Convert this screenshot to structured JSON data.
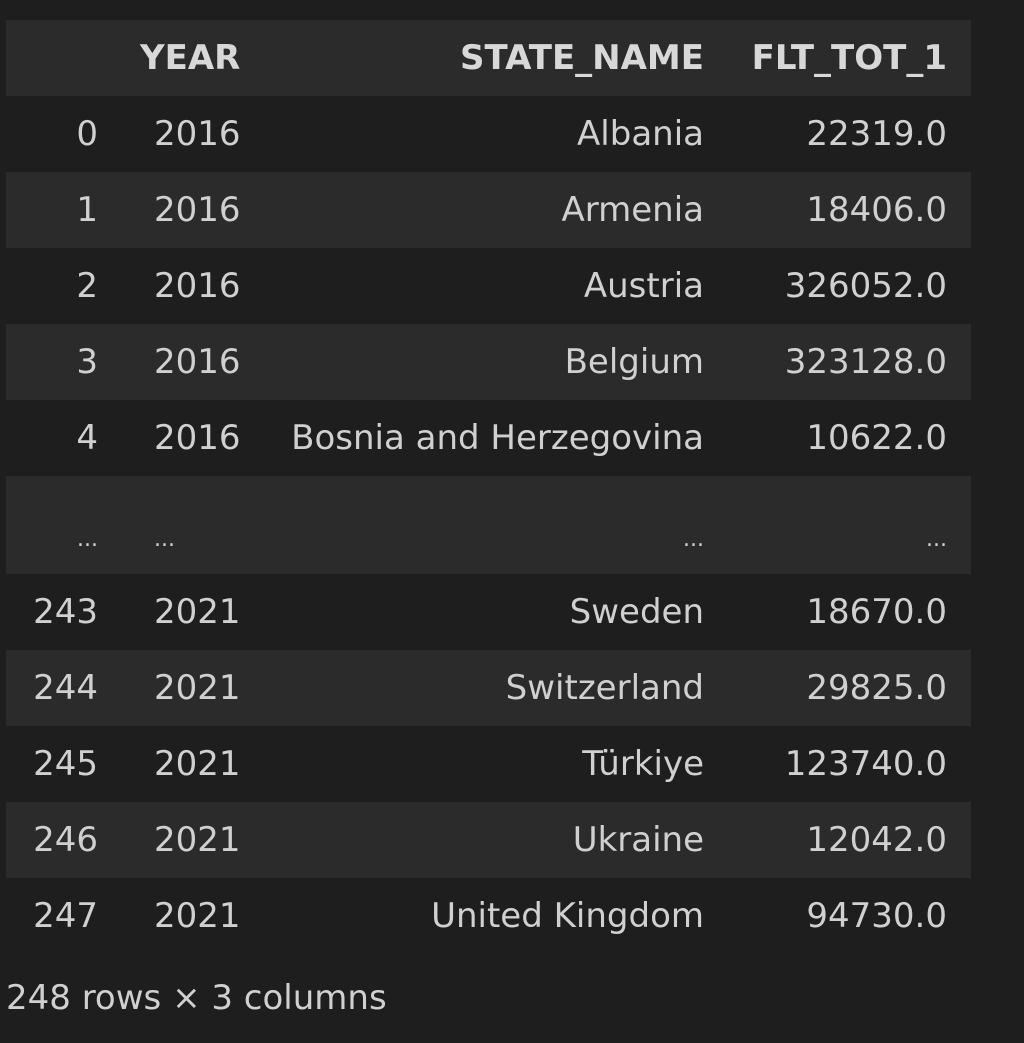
{
  "table": {
    "columns": {
      "index": "",
      "year": "YEAR",
      "state_name": "STATE_NAME",
      "flt_tot_1": "FLT_TOT_1"
    },
    "rows": [
      {
        "index": "0",
        "year": "2016",
        "state_name": "Albania",
        "flt_tot_1": "22319.0"
      },
      {
        "index": "1",
        "year": "2016",
        "state_name": "Armenia",
        "flt_tot_1": "18406.0"
      },
      {
        "index": "2",
        "year": "2016",
        "state_name": "Austria",
        "flt_tot_1": "326052.0"
      },
      {
        "index": "3",
        "year": "2016",
        "state_name": "Belgium",
        "flt_tot_1": "323128.0"
      },
      {
        "index": "4",
        "year": "2016",
        "state_name": "Bosnia and Herzegovina",
        "flt_tot_1": "10622.0"
      },
      {
        "index": "...",
        "year": "...",
        "state_name": "...",
        "flt_tot_1": "..."
      },
      {
        "index": "243",
        "year": "2021",
        "state_name": "Sweden",
        "flt_tot_1": "18670.0"
      },
      {
        "index": "244",
        "year": "2021",
        "state_name": "Switzerland",
        "flt_tot_1": "29825.0"
      },
      {
        "index": "245",
        "year": "2021",
        "state_name": "Türkiye",
        "flt_tot_1": "123740.0"
      },
      {
        "index": "246",
        "year": "2021",
        "state_name": "Ukraine",
        "flt_tot_1": "12042.0"
      },
      {
        "index": "247",
        "year": "2021",
        "state_name": "United Kingdom",
        "flt_tot_1": "94730.0"
      }
    ]
  },
  "summary": "248 rows × 3 columns"
}
